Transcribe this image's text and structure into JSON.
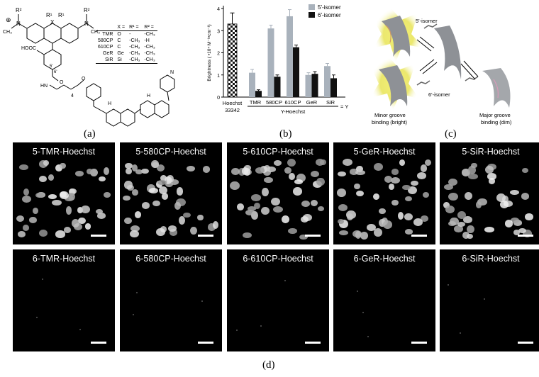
{
  "panel_labels": {
    "a": "(a)",
    "b": "(b)",
    "c": "(c)",
    "d": "(d)"
  },
  "structure": {
    "substituents": {
      "r2": "R²",
      "r1": "R¹",
      "x": "X",
      "n": "N",
      "ch3": "CH₃",
      "plus": "⊕",
      "hooc": "HOOC",
      "hn": "HN",
      "h": "H",
      "o": "O",
      "n4": "4",
      "pos5": "5'",
      "pos6": "6'",
      "hN": "N"
    },
    "table": {
      "headers": [
        "X =",
        "R¹ =",
        "R² ="
      ],
      "rows": [
        {
          "name": "TMR",
          "x": "O",
          "r1": "-",
          "r2": "-CH₃"
        },
        {
          "name": "580CP",
          "x": "C",
          "r1": "-CH₃",
          "r2": "-H"
        },
        {
          "name": "610CP",
          "x": "C",
          "r1": "-CH₃",
          "r2": "-CH₃"
        },
        {
          "name": "GeR",
          "x": "Ge",
          "r1": "-CH₃",
          "r2": "-CH₃"
        },
        {
          "name": "SiR",
          "x": "Si",
          "r1": "-CH₃",
          "r2": "-CH₃"
        }
      ]
    }
  },
  "chart_data": {
    "type": "bar",
    "ylabel": "Brightness ( •10⁴ M⁻¹•cm⁻¹)",
    "ylim": [
      0,
      4
    ],
    "yticks": [
      "0",
      "1",
      "2",
      "3",
      "4"
    ],
    "reference": {
      "label_line1": "Hoechst",
      "label_line2": "33342",
      "value": 3.3,
      "error": 0.5
    },
    "categories": [
      "TMR",
      "580CP",
      "610CP",
      "GeR",
      "SiR"
    ],
    "group_label": "Y-Hoechst",
    "group_suffix": "= Y",
    "series": [
      {
        "name": "5'-isomer",
        "color": "#a9b2bc",
        "values": [
          1.1,
          3.1,
          3.65,
          1.0,
          1.4
        ],
        "errors": [
          0.15,
          0.15,
          0.3,
          0.1,
          0.12
        ]
      },
      {
        "name": "6'-isomer",
        "color": "#111111",
        "values": [
          0.28,
          0.92,
          2.25,
          1.05,
          0.85
        ],
        "errors": [
          0.05,
          0.08,
          0.1,
          0.1,
          0.15
        ]
      }
    ]
  },
  "binding_diagram": {
    "isomer5": "5'-isomer",
    "isomer6": "6'-isomer",
    "minor_line1": "Minor groove",
    "minor_line2": "binding (bright)",
    "major_line1": "Major groove",
    "major_line2": "binding (dim)"
  },
  "microscopy": {
    "top_row": [
      "5-TMR-Hoechst",
      "5-580CP-Hoechst",
      "5-610CP-Hoechst",
      "5-GeR-Hoechst",
      "5-SiR-Hoechst"
    ],
    "bottom_row": [
      "6-TMR-Hoechst",
      "6-580CP-Hoechst",
      "6-610CP-Hoechst",
      "6-GeR-Hoechst",
      "6-SiR-Hoechst"
    ]
  }
}
